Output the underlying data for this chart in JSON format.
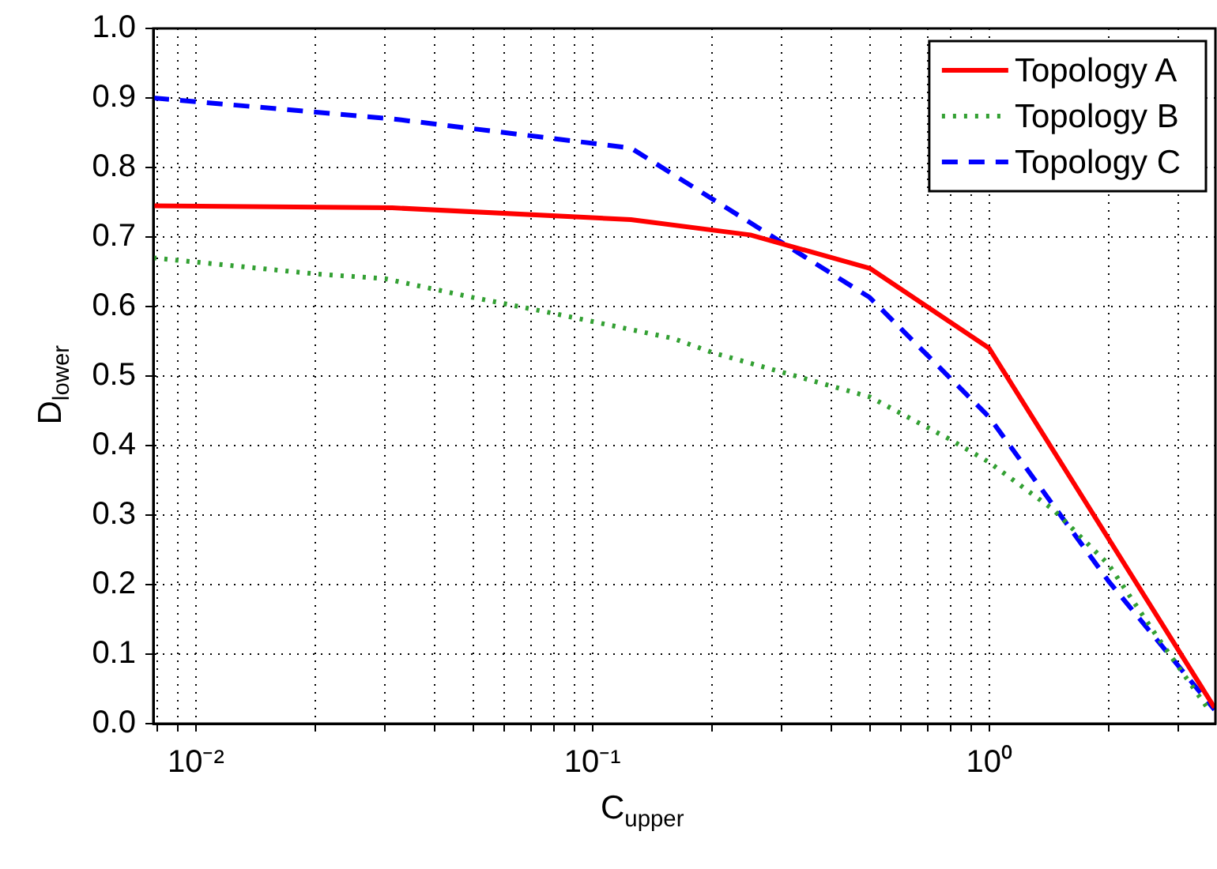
{
  "chart_data": {
    "type": "line",
    "xlabel": "C$_{upper}$",
    "ylabel": "D$_{lower}$",
    "log": "x",
    "xlim": [
      0.0078125,
      3.72
    ],
    "ylim": [
      0,
      1
    ],
    "xticks": [
      {
        "value": 0.008,
        "label": null
      },
      {
        "value": 0.009,
        "label": null
      },
      {
        "value": 0.01,
        "label": "10⁻²"
      },
      {
        "value": 0.02,
        "label": null
      },
      {
        "value": 0.03,
        "label": null
      },
      {
        "value": 0.04,
        "label": null
      },
      {
        "value": 0.05,
        "label": null
      },
      {
        "value": 0.06,
        "label": null
      },
      {
        "value": 0.07,
        "label": null
      },
      {
        "value": 0.08,
        "label": null
      },
      {
        "value": 0.09,
        "label": null
      },
      {
        "value": 0.1,
        "label": "10⁻¹"
      },
      {
        "value": 0.2,
        "label": null
      },
      {
        "value": 0.3,
        "label": null
      },
      {
        "value": 0.4,
        "label": null
      },
      {
        "value": 0.5,
        "label": null
      },
      {
        "value": 0.6,
        "label": null
      },
      {
        "value": 0.7,
        "label": null
      },
      {
        "value": 0.8,
        "label": null
      },
      {
        "value": 0.9,
        "label": null
      },
      {
        "value": 1,
        "label": "10⁰"
      },
      {
        "value": 2,
        "label": null
      },
      {
        "value": 3,
        "label": null
      }
    ],
    "yticks": [
      {
        "value": 0,
        "label": "0.0"
      },
      {
        "value": 0.1,
        "label": "0.1"
      },
      {
        "value": 0.2,
        "label": "0.2"
      },
      {
        "value": 0.3,
        "label": "0.3"
      },
      {
        "value": 0.4,
        "label": "0.4"
      },
      {
        "value": 0.5,
        "label": "0.5"
      },
      {
        "value": 0.6,
        "label": "0.6"
      },
      {
        "value": 0.7,
        "label": "0.7"
      },
      {
        "value": 0.8,
        "label": "0.8"
      },
      {
        "value": 0.9,
        "label": "0.9"
      },
      {
        "value": 1,
        "label": "1.0"
      }
    ],
    "grid": true,
    "legend": "top right",
    "marker": "none",
    "series": [
      {
        "name": "Topology A",
        "color": "#ff0000",
        "line_style": "solid",
        "x": [
          0.0078125,
          0.03125,
          0.125,
          0.25,
          0.5,
          1,
          3.7
        ],
        "values": [
          0.745,
          0.742,
          0.725,
          0.703,
          0.655,
          0.54,
          0.023
        ]
      },
      {
        "name": "Topology B",
        "color": "#33a033",
        "line_style": "dotted",
        "x": [
          0.0078125,
          0.02,
          0.03,
          0.05,
          0.08,
          0.16,
          0.2,
          0.5,
          0.79,
          1,
          1.45,
          2,
          2.66,
          3.6
        ],
        "values": [
          0.67,
          0.647,
          0.64,
          0.613,
          0.59,
          0.554,
          0.534,
          0.47,
          0.41,
          0.376,
          0.308,
          0.229,
          0.124,
          0.018
        ]
      },
      {
        "name": "Topology C",
        "color": "#0000ff",
        "line_style": "dashed",
        "x": [
          0.0078125,
          0.03125,
          0.125,
          0.5,
          1,
          2,
          3.7
        ],
        "values": [
          0.9,
          0.87,
          0.828,
          0.613,
          0.441,
          0.205,
          0.02
        ]
      }
    ]
  }
}
